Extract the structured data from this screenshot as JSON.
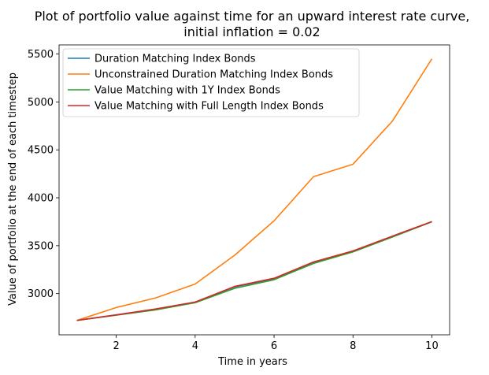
{
  "chart_data": {
    "type": "line",
    "title": "Plot of portfolio value against time for an upward interest rate curve,",
    "subtitle": "initial inflation = 0.02",
    "xlabel": "Time in years",
    "ylabel": "Value of portfolio at the end of each timestep",
    "xlim": [
      0.55,
      10.45
    ],
    "ylim": [
      2570,
      5595
    ],
    "xticks": [
      2,
      4,
      6,
      8,
      10
    ],
    "yticks": [
      3000,
      3500,
      4000,
      4500,
      5000,
      5500
    ],
    "grid": false,
    "legend_position": "upper-left",
    "x": [
      1,
      2,
      3,
      4,
      5,
      6,
      7,
      8,
      9,
      10
    ],
    "series": [
      {
        "name": "Duration Matching Index Bonds",
        "color": "#1f77b4",
        "values": [
          2720,
          2778,
          2838,
          2910,
          3070,
          3155,
          3325,
          3440,
          3595,
          3750
        ]
      },
      {
        "name": "Unconstrained Duration Matching Index Bonds",
        "color": "#ff7f0e",
        "values": [
          2720,
          2855,
          2955,
          3100,
          3400,
          3760,
          4220,
          4350,
          4800,
          5450
        ]
      },
      {
        "name": "Value Matching with 1Y Index Bonds",
        "color": "#2ca02c",
        "values": [
          2720,
          2775,
          2830,
          2905,
          3055,
          3145,
          3315,
          3435,
          3590,
          3750
        ]
      },
      {
        "name": "Value Matching with Full Length Index Bonds",
        "color": "#d62728",
        "values": [
          2720,
          2778,
          2840,
          2912,
          3075,
          3160,
          3330,
          3445,
          3600,
          3752
        ]
      }
    ]
  }
}
